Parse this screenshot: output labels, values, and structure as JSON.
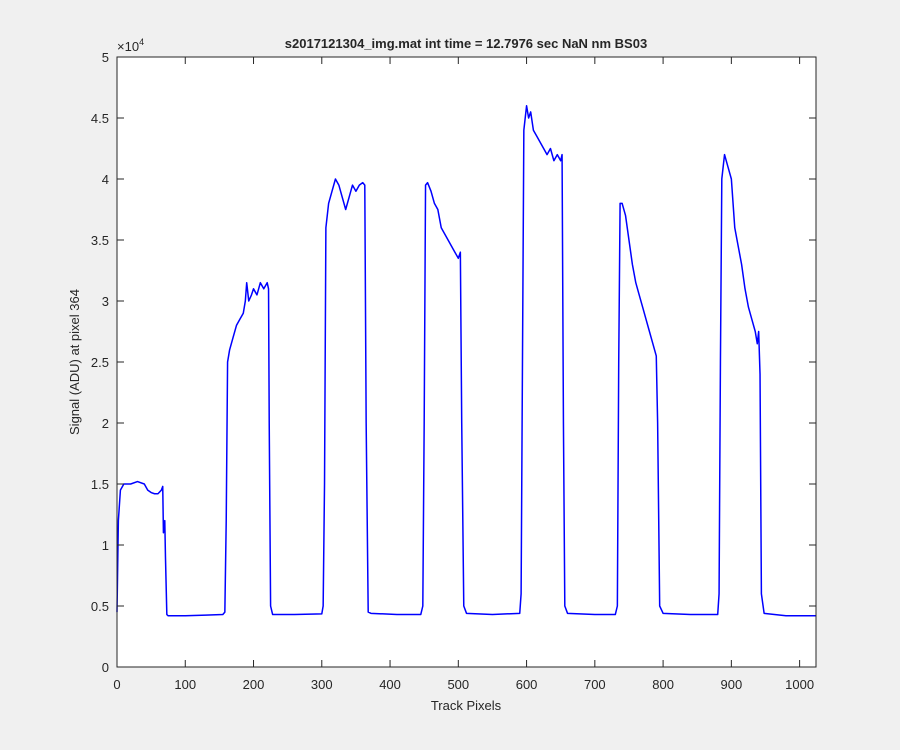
{
  "chart_data": {
    "type": "line",
    "title": "s2017121304_img.mat int time = 12.7976 sec  NaN nm BS03",
    "x_label": "Track Pixels",
    "y_label": "Signal (ADU) at pixel 364",
    "y_scale_label": "×10",
    "y_scale_exponent": "4",
    "xlim": [
      0,
      1024
    ],
    "ylim": [
      0,
      5
    ],
    "xticks": [
      0,
      100,
      200,
      300,
      400,
      500,
      600,
      700,
      800,
      900,
      1000
    ],
    "yticks": [
      0,
      0.5,
      1,
      1.5,
      2,
      2.5,
      3,
      3.5,
      4,
      4.5,
      5
    ],
    "grid": false,
    "x": [
      0,
      2,
      5,
      10,
      20,
      30,
      40,
      45,
      50,
      55,
      60,
      65,
      67,
      68,
      70,
      71,
      73,
      75,
      100,
      130,
      155,
      158,
      160,
      162,
      165,
      170,
      175,
      180,
      185,
      188,
      190,
      193,
      197,
      200,
      205,
      210,
      215,
      220,
      222,
      223,
      225,
      228,
      260,
      300,
      302,
      304,
      306,
      310,
      315,
      320,
      325,
      330,
      335,
      340,
      345,
      350,
      355,
      360,
      363,
      365,
      368,
      372,
      410,
      445,
      448,
      450,
      452,
      455,
      460,
      465,
      470,
      475,
      480,
      485,
      490,
      495,
      500,
      503,
      505,
      508,
      512,
      550,
      590,
      592,
      594,
      596,
      600,
      603,
      606,
      610,
      615,
      620,
      625,
      630,
      635,
      640,
      645,
      650,
      652,
      654,
      656,
      660,
      700,
      730,
      733,
      735,
      737,
      740,
      745,
      750,
      755,
      760,
      765,
      770,
      775,
      780,
      785,
      790,
      792,
      795,
      800,
      840,
      880,
      882,
      884,
      886,
      890,
      895,
      900,
      905,
      910,
      915,
      920,
      925,
      930,
      935,
      938,
      940,
      942,
      944,
      948,
      980,
      1024
    ],
    "series": [
      {
        "name": "Signal",
        "color": "#0000ff",
        "values": [
          0.45,
          1.2,
          1.45,
          1.5,
          1.5,
          1.52,
          1.5,
          1.45,
          1.43,
          1.42,
          1.42,
          1.45,
          1.48,
          1.1,
          1.2,
          0.9,
          0.43,
          0.42,
          0.42,
          0.425,
          0.43,
          0.45,
          1.2,
          2.5,
          2.6,
          2.7,
          2.8,
          2.85,
          2.9,
          3.0,
          3.15,
          3.0,
          3.05,
          3.1,
          3.05,
          3.15,
          3.1,
          3.15,
          3.1,
          2.0,
          0.5,
          0.43,
          0.43,
          0.435,
          0.5,
          1.5,
          3.6,
          3.8,
          3.9,
          4.0,
          3.95,
          3.85,
          3.75,
          3.85,
          3.95,
          3.9,
          3.95,
          3.97,
          3.95,
          2.0,
          0.45,
          0.44,
          0.43,
          0.43,
          0.5,
          2.0,
          3.95,
          3.97,
          3.9,
          3.8,
          3.75,
          3.6,
          3.55,
          3.5,
          3.45,
          3.4,
          3.35,
          3.4,
          2.0,
          0.5,
          0.44,
          0.43,
          0.44,
          0.6,
          2.5,
          4.4,
          4.6,
          4.5,
          4.55,
          4.4,
          4.35,
          4.3,
          4.25,
          4.2,
          4.25,
          4.15,
          4.2,
          4.15,
          4.2,
          2.0,
          0.5,
          0.44,
          0.43,
          0.43,
          0.5,
          2.5,
          3.8,
          3.8,
          3.7,
          3.5,
          3.3,
          3.15,
          3.05,
          2.95,
          2.85,
          2.75,
          2.65,
          2.55,
          2.0,
          0.5,
          0.44,
          0.43,
          0.43,
          0.6,
          2.5,
          4.0,
          4.2,
          4.1,
          4.0,
          3.6,
          3.45,
          3.3,
          3.1,
          2.95,
          2.85,
          2.75,
          2.65,
          2.75,
          2.4,
          0.6,
          0.44,
          0.42,
          0.42
        ]
      }
    ]
  }
}
